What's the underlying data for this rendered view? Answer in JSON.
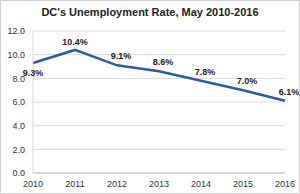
{
  "chart_data": {
    "type": "line",
    "title": "DC's Unemployment Rate, May 2010-2016",
    "categories": [
      "2010",
      "2011",
      "2012",
      "2013",
      "2014",
      "2015",
      "2016"
    ],
    "values": [
      9.3,
      10.4,
      9.1,
      8.6,
      7.8,
      7.0,
      6.1
    ],
    "value_labels": [
      "9.3%",
      "10.4%",
      "9.1%",
      "8.6%",
      "7.8%",
      "7.0%",
      "6.1%"
    ],
    "color": "#2b5c9b",
    "ylim": [
      0,
      12
    ],
    "yticks": [
      {
        "value": 0,
        "label": "0.0"
      },
      {
        "value": 2,
        "label": "2.0"
      },
      {
        "value": 4,
        "label": "4.0"
      },
      {
        "value": 6,
        "label": "6.0"
      },
      {
        "value": 8,
        "label": "8.0"
      },
      {
        "value": 10,
        "label": "10.0"
      },
      {
        "value": 12,
        "label": "12.0"
      }
    ],
    "grid": true,
    "data_labels": true
  }
}
